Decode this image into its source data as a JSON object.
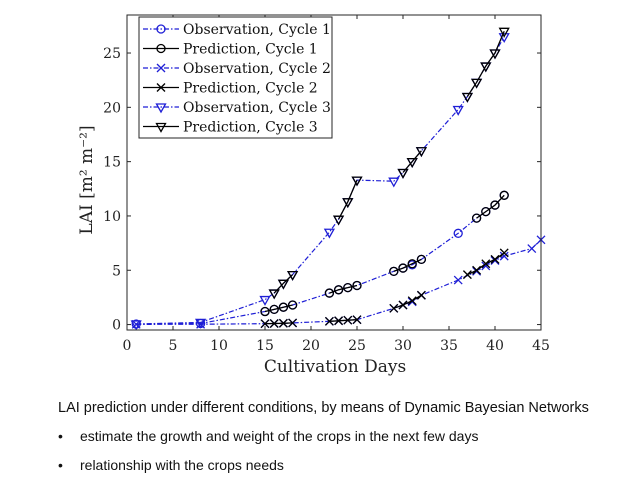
{
  "chart_data": {
    "type": "line",
    "xlabel": "Cultivation Days",
    "ylabel": "LAI [m² m⁻²]",
    "xlim": [
      0,
      45
    ],
    "ylim": [
      -0.5,
      28.5
    ],
    "xticks": [
      0,
      5,
      10,
      15,
      20,
      25,
      30,
      35,
      40,
      45
    ],
    "yticks": [
      0,
      5,
      10,
      15,
      20,
      25
    ],
    "grid": false,
    "legend_position": "top-left",
    "series": [
      {
        "name": "Observation, Cycle 1",
        "style": "dash-dot",
        "color": "#1f1fd6",
        "marker": "circle",
        "points": [
          [
            1,
            0.05
          ],
          [
            8,
            0.1
          ],
          [
            15,
            1.2
          ],
          [
            16,
            1.4
          ],
          [
            17,
            1.6
          ],
          [
            18,
            1.8
          ],
          [
            22,
            2.9
          ],
          [
            23,
            3.2
          ],
          [
            24,
            3.4
          ],
          [
            25,
            3.6
          ],
          [
            29,
            4.9
          ],
          [
            30,
            5.2
          ],
          [
            31,
            5.5
          ],
          [
            32,
            6.0
          ],
          [
            36,
            8.4
          ],
          [
            38,
            9.8
          ],
          [
            39,
            10.4
          ],
          [
            40,
            11.0
          ],
          [
            41,
            11.9
          ]
        ]
      },
      {
        "name": "Prediction, Cycle 1",
        "style": "solid",
        "color": "#000000",
        "marker": "circle",
        "segments": [
          [
            [
              15,
              1.2
            ],
            [
              16,
              1.4
            ],
            [
              17,
              1.6
            ],
            [
              18,
              1.8
            ]
          ],
          [
            [
              22,
              2.9
            ],
            [
              23,
              3.2
            ],
            [
              24,
              3.4
            ],
            [
              25,
              3.6
            ]
          ],
          [
            [
              29,
              4.9
            ],
            [
              30,
              5.2
            ],
            [
              31,
              5.6
            ],
            [
              32,
              6.0
            ]
          ],
          [
            [
              38,
              9.8
            ],
            [
              39,
              10.4
            ],
            [
              40,
              11.0
            ],
            [
              41,
              11.9
            ]
          ]
        ]
      },
      {
        "name": "Observation, Cycle 2",
        "style": "dash-dot",
        "color": "#1f1fd6",
        "marker": "x",
        "points": [
          [
            1,
            0.02
          ],
          [
            8,
            0.03
          ],
          [
            15,
            0.08
          ],
          [
            16,
            0.1
          ],
          [
            17,
            0.12
          ],
          [
            18,
            0.15
          ],
          [
            22,
            0.3
          ],
          [
            23,
            0.35
          ],
          [
            24,
            0.4
          ],
          [
            25,
            0.45
          ],
          [
            29,
            1.5
          ],
          [
            30,
            1.8
          ],
          [
            31,
            2.1
          ],
          [
            32,
            2.7
          ],
          [
            36,
            4.1
          ],
          [
            38,
            4.9
          ],
          [
            39,
            5.4
          ],
          [
            40,
            5.9
          ],
          [
            41,
            6.3
          ],
          [
            44,
            7.0
          ],
          [
            45,
            7.8
          ]
        ]
      },
      {
        "name": "Prediction, Cycle 2",
        "style": "solid",
        "color": "#000000",
        "marker": "x",
        "segments": [
          [
            [
              15,
              0.08
            ],
            [
              16,
              0.1
            ],
            [
              17,
              0.12
            ],
            [
              18,
              0.15
            ]
          ],
          [
            [
              22,
              0.3
            ],
            [
              23,
              0.35
            ],
            [
              24,
              0.4
            ],
            [
              25,
              0.45
            ]
          ],
          [
            [
              29,
              1.5
            ],
            [
              30,
              1.8
            ],
            [
              31,
              2.2
            ],
            [
              32,
              2.7
            ]
          ],
          [
            [
              37,
              4.6
            ],
            [
              38,
              5.0
            ],
            [
              39,
              5.6
            ],
            [
              40,
              6.0
            ],
            [
              41,
              6.6
            ]
          ]
        ]
      },
      {
        "name": "Observation, Cycle 3",
        "style": "dash-dot",
        "color": "#1f1fd6",
        "marker": "triangle-down",
        "points": [
          [
            1,
            0.05
          ],
          [
            8,
            0.2
          ],
          [
            15,
            2.3
          ],
          [
            16,
            2.9
          ],
          [
            17,
            3.8
          ],
          [
            18,
            4.6
          ],
          [
            22,
            8.5
          ],
          [
            23,
            9.7
          ],
          [
            24,
            11.3
          ],
          [
            25,
            13.3
          ],
          [
            29,
            13.2
          ],
          [
            30,
            14.0
          ],
          [
            31,
            15.0
          ],
          [
            32,
            16.0
          ],
          [
            36,
            19.8
          ],
          [
            37,
            21.0
          ],
          [
            38,
            22.3
          ],
          [
            39,
            23.8
          ],
          [
            40,
            25.0
          ],
          [
            41,
            26.5
          ]
        ]
      },
      {
        "name": "Prediction, Cycle 3",
        "style": "solid",
        "color": "#000000",
        "marker": "triangle-down",
        "segments": [
          [
            [
              16,
              2.9
            ],
            [
              17,
              3.8
            ],
            [
              18,
              4.6
            ]
          ],
          [
            [
              23,
              9.7
            ],
            [
              24,
              11.3
            ],
            [
              25,
              13.3
            ]
          ],
          [
            [
              30,
              14.0
            ],
            [
              31,
              15.0
            ],
            [
              32,
              16.0
            ]
          ],
          [
            [
              37,
              21.0
            ],
            [
              38,
              22.3
            ],
            [
              39,
              23.8
            ],
            [
              40,
              25.0
            ],
            [
              41,
              27.0
            ]
          ]
        ]
      }
    ]
  },
  "caption": "LAI prediction under different conditions, by means of Dynamic Bayesian Networks",
  "bullets": [
    "estimate the growth and weight of the crops in the next few days",
    "relationship with the crops needs"
  ]
}
